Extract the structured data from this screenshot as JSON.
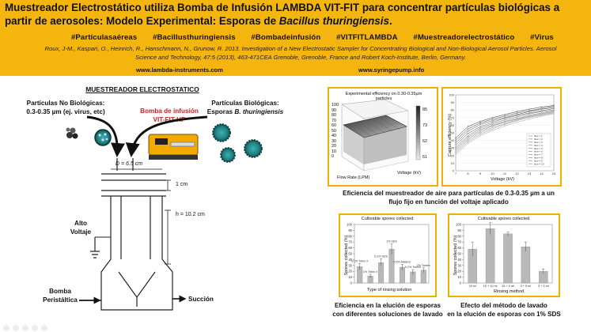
{
  "header": {
    "title_line1": "Muestreador Electrostático utiliza Bomba de Infusión LAMBDA VIT-FIT para concentrar partículas biológicas a",
    "title_line2_pre": "partir de aerosoles: Modelo Experimental: Esporas de ",
    "title_line2_italic": "Bacillus thuringiensis",
    "title_line2_post": ".",
    "hashtags": [
      "#Partículasaéreas",
      "#Bacillusthuringiensis",
      "#Bombadeinfusión",
      "#VITFITLAMBDA",
      "#Muestreadorelectrostático",
      "#Virus"
    ],
    "citation_line1": "Roux, J-M., Kaspari, O., Heinrich, R., Hanschmann, N., Grunow, R. 2013. Investigation of a New Electrostatic Sampler for Concentrating Biological and Non-Biological Aerosol Particles. Aerosol",
    "citation_line2": "Science and Technology, 47:5 (2013), 463-471CEA Grenoble, Grenoble, France and Robert Koch-Institute, Berlin, Germany.",
    "url_left": "www.lambda-instruments.com",
    "url_right": "www.syringepump.info"
  },
  "diagram": {
    "heading": "MUESTREADOR ELECTROSTATICO",
    "nonbio_line1": "Partículas No Biológicas:",
    "nonbio_line2": "0.3-0.35 µm (ej. virus, etc)",
    "pump_line1": "Bomba de infusión",
    "pump_line2": "VIT-FIT HP",
    "bio_line1": "Partículas Biológicas:",
    "bio_line2_pre": "Esporas ",
    "bio_line2_italic": "B. thuringiensis",
    "dim_d": "D = 6.5 cm",
    "dim_1cm": "1 cm",
    "dim_h": "h = 10.2 cm",
    "alto_voltaje_line1": "Alto",
    "alto_voltaje_line2": "Voltaje",
    "bomba_line1": "Bomba",
    "bomba_line2": "Peristáltica",
    "succion": "Succión"
  },
  "colors": {
    "header_bg": "#f5b50f",
    "panel_border": "#f0b000",
    "pump_label": "#d02020",
    "bar_gray": "#b8b8b8"
  },
  "charts": {
    "top_left": {
      "title": "Experimental efficiency on 0.30-0.35µm particles",
      "xlabel": "Flow Rate (LPM)",
      "ylabel_right": "Voltage (kV)",
      "colorbar_ticks": [
        "85",
        "73",
        "62",
        "51"
      ],
      "z_ticks": [
        "100",
        "90",
        "80",
        "70",
        "60",
        "50",
        "40",
        "30",
        "20",
        "10",
        "0"
      ],
      "caption_line1": "Eficiencia del muestreador de aire para partículas de 0.3-0.35 µm a un",
      "caption_line2": "flujo fijo en función del voltaje aplicado"
    },
    "top_right": {
      "ylabel": "Capture efficiency (%)",
      "xlabel": "Voltage (kV)",
      "x_ticks": [
        "7",
        "8",
        "9",
        "10",
        "11",
        "12",
        "13",
        "14",
        "15"
      ],
      "y_ticks": [
        "100",
        "90",
        "80",
        "70",
        "60",
        "50",
        "40",
        "30",
        "20",
        "10",
        "0"
      ],
      "legend": [
        "flow = 1",
        "flow = 2",
        "flow = 3",
        "flow = 4",
        "flow = 5",
        "flow = 6",
        "flow = 7",
        "flow = 8",
        "flow = 9",
        "flow = 10"
      ]
    },
    "bottom_left": {
      "title": "Cultivable spores collected",
      "ylabel": "Spores collected (%)",
      "xlabel": "Type of rinsing solution",
      "annotations": [
        "0.1% Triton X",
        "1% Triton X",
        "0.2% SDS",
        "1% SDS",
        "0.5% Alkalcor",
        "0.2% Tween",
        "2% Tween"
      ],
      "caption_line1": "Eficiencia en la elución de esporas",
      "caption_line2": "con diferentes soluciones de lavado"
    },
    "bottom_right": {
      "title": "Cultivable spores collected",
      "ylabel": "Spores collected (%)",
      "xlabel": "Rinsing method",
      "categories": [
        "15 ml",
        "15 + 10 ml",
        "15 + 5 ml",
        "5 + 5 ml",
        "3 + 3 ml"
      ],
      "caption_line1": "Efecto del método de lavado",
      "caption_line2": "en la elución de esporas con 1% SDS"
    }
  },
  "chart_data": [
    {
      "type": "bar",
      "title": "Cultivable spores collected",
      "xlabel": "Type of rinsing solution",
      "ylabel": "Spores collected (%)",
      "categories": [
        "0.1% Triton X",
        "1% Triton X",
        "0.2% SDS",
        "1% SDS",
        "0.5% Alkalcor",
        "0.2% Tween",
        "2% Tween"
      ],
      "values": [
        28,
        12,
        35,
        58,
        27,
        19,
        22
      ],
      "errors": [
        5,
        3,
        6,
        9,
        5,
        4,
        4
      ],
      "ylim": [
        0,
        100
      ],
      "y_ticks": [
        0,
        10,
        20,
        30,
        40,
        50,
        60,
        70,
        80,
        90,
        100
      ]
    },
    {
      "type": "bar",
      "title": "Cultivable spores collected",
      "xlabel": "Rinsing method",
      "ylabel": "Spores collected (%)",
      "categories": [
        "15 ml",
        "15 + 10 ml",
        "15 + 5 ml",
        "5 + 5 ml",
        "3 + 3 ml"
      ],
      "values": [
        58,
        93,
        84,
        62,
        20
      ],
      "errors": [
        12,
        10,
        3,
        8,
        4
      ],
      "ylim": [
        0,
        100
      ],
      "y_ticks": [
        0,
        10,
        20,
        30,
        40,
        50,
        60,
        70,
        80,
        90,
        100
      ]
    },
    {
      "type": "line",
      "xlabel": "Voltage (kV)",
      "ylabel": "Capture efficiency (%)",
      "x": [
        7,
        8,
        9,
        10,
        11,
        12,
        13,
        14,
        15
      ],
      "series": [
        {
          "name": "flow = 1",
          "values": [
            43,
            58,
            65,
            70,
            74,
            78,
            81,
            84,
            86
          ]
        },
        {
          "name": "flow = 2",
          "values": [
            40,
            55,
            63,
            68,
            72,
            76,
            79,
            82,
            85
          ]
        },
        {
          "name": "flow = 3",
          "values": [
            37,
            52,
            61,
            66,
            70,
            74,
            78,
            81,
            83
          ]
        },
        {
          "name": "flow = 4",
          "values": [
            34,
            49,
            58,
            64,
            69,
            73,
            76,
            79,
            82
          ]
        },
        {
          "name": "flow = 5",
          "values": [
            31,
            46,
            56,
            62,
            67,
            71,
            75,
            78,
            80
          ]
        },
        {
          "name": "flow = 6",
          "values": [
            29,
            44,
            54,
            60,
            65,
            69,
            73,
            76,
            79
          ]
        },
        {
          "name": "flow = 7",
          "values": [
            27,
            42,
            52,
            59,
            64,
            68,
            72,
            75,
            78
          ]
        },
        {
          "name": "flow = 8",
          "values": [
            25,
            40,
            50,
            57,
            62,
            67,
            71,
            74,
            77
          ]
        },
        {
          "name": "flow = 9",
          "values": [
            23,
            38,
            48,
            55,
            61,
            66,
            70,
            73,
            76
          ]
        },
        {
          "name": "flow = 10",
          "values": [
            21,
            36,
            46,
            53,
            59,
            64,
            68,
            72,
            75
          ]
        }
      ],
      "ylim": [
        0,
        100
      ]
    }
  ]
}
